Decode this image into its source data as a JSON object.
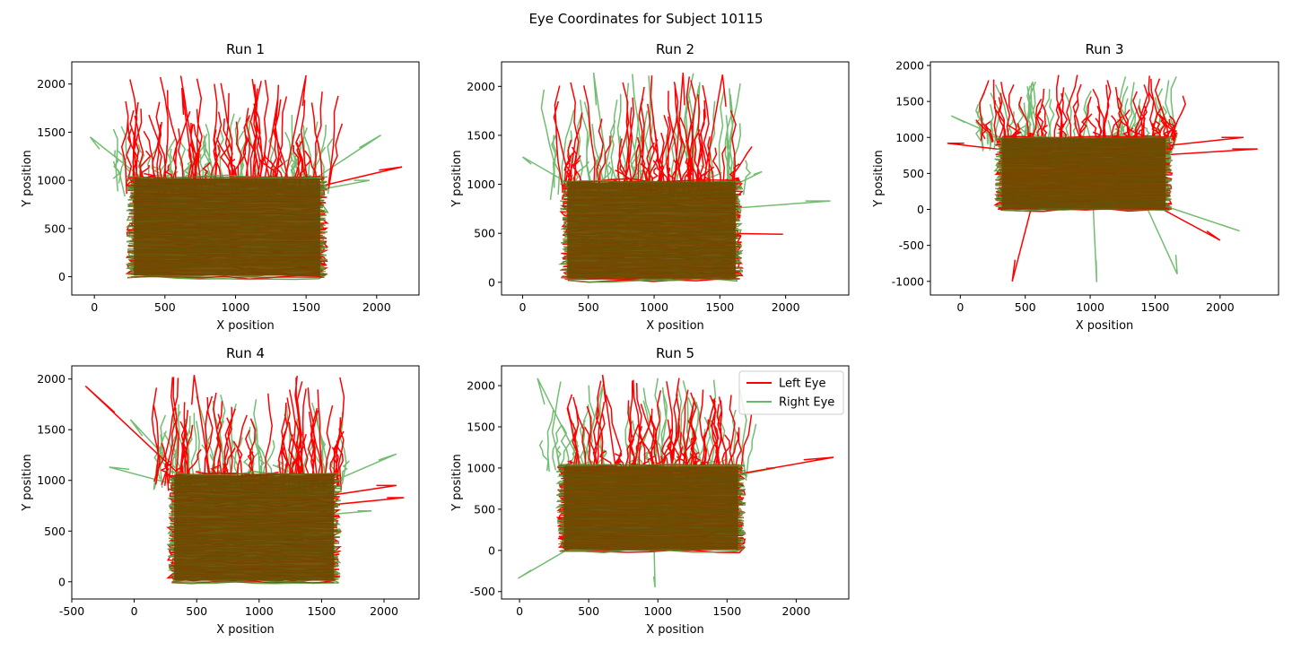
{
  "figure": {
    "title": "Eye Coordinates for Subject 10115"
  },
  "legend": {
    "entries": [
      {
        "name": "Left Eye",
        "color": "#ff0000"
      },
      {
        "name": "Right Eye",
        "color": "#6ab96a"
      }
    ]
  },
  "chart_data": [
    {
      "type": "line",
      "title": "Run 1",
      "xlabel": "X position",
      "ylabel": "Y position",
      "xlim": [
        -160,
        2300
      ],
      "ylim": [
        -190,
        2230
      ],
      "xticks": [
        0,
        500,
        1000,
        1500,
        2000
      ],
      "yticks": [
        0,
        500,
        1000,
        1500,
        2000
      ],
      "grid": false,
      "scan_region": {
        "x": [
          260,
          1620
        ],
        "y": [
          0,
          1030
        ]
      },
      "series": [
        {
          "name": "Left Eye",
          "color": "#ff0000",
          "excursions_y_max": 2090,
          "excursions_x_range": [
            200,
            2200
          ],
          "stray_points": [
            [
              1500,
              2090
            ],
            [
              2180,
              1140
            ],
            [
              1300,
              1850
            ],
            [
              620,
              1960
            ]
          ]
        },
        {
          "name": "Right Eye",
          "color": "#6ab96a",
          "excursions_y_max": 1700,
          "excursions_x_range": [
            -30,
            2100
          ],
          "stray_points": [
            [
              -30,
              1450
            ],
            [
              2030,
              1470
            ],
            [
              1950,
              1000
            ]
          ]
        }
      ]
    },
    {
      "type": "line",
      "title": "Run 2",
      "xlabel": "X position",
      "ylabel": "Y position",
      "xlim": [
        -160,
        2480
      ],
      "ylim": [
        -130,
        2250
      ],
      "xticks": [
        0,
        500,
        1000,
        1500,
        2000
      ],
      "yticks": [
        0,
        500,
        1000,
        1500,
        2000
      ],
      "grid": false,
      "scan_region": {
        "x": [
          320,
          1640
        ],
        "y": [
          30,
          1030
        ]
      },
      "series": [
        {
          "name": "Left Eye",
          "color": "#ff0000",
          "excursions_y_max": 2130,
          "excursions_x_range": [
            250,
            1980
          ],
          "stray_points": [
            [
              1980,
              490
            ],
            [
              1220,
              2140
            ],
            [
              1520,
              2120
            ]
          ]
        },
        {
          "name": "Right Eye",
          "color": "#6ab96a",
          "excursions_y_max": 2140,
          "excursions_x_range": [
            0,
            2340
          ],
          "stray_points": [
            [
              0,
              1280
            ],
            [
              2340,
              830
            ],
            [
              1820,
              1130
            ],
            [
              540,
              2140
            ]
          ]
        }
      ]
    },
    {
      "type": "line",
      "title": "Run 3",
      "xlabel": "X position",
      "ylabel": "Y position",
      "xlim": [
        -230,
        2450
      ],
      "ylim": [
        -1190,
        2050
      ],
      "xticks": [
        0,
        500,
        1000,
        1500,
        2000
      ],
      "yticks": [
        -1000,
        -500,
        0,
        500,
        1000,
        1500,
        2000
      ],
      "grid": false,
      "scan_region": {
        "x": [
          300,
          1600
        ],
        "y": [
          0,
          1000
        ]
      },
      "series": [
        {
          "name": "Left Eye",
          "color": "#ff0000",
          "excursions_y_max": 1870,
          "excursions_x_range": [
            -100,
            2290
          ],
          "stray_points": [
            [
              2290,
              840
            ],
            [
              2000,
              -430
            ],
            [
              2180,
              1000
            ],
            [
              -100,
              920
            ],
            [
              400,
              -1000
            ]
          ]
        },
        {
          "name": "Right Eye",
          "color": "#6ab96a",
          "excursions_y_max": 1850,
          "excursions_x_range": [
            -70,
            2150
          ],
          "stray_points": [
            [
              2150,
              -300
            ],
            [
              1670,
              -900
            ],
            [
              -70,
              1300
            ],
            [
              1050,
              -1010
            ]
          ]
        }
      ]
    },
    {
      "type": "line",
      "title": "Run 4",
      "xlabel": "X position",
      "ylabel": "Y position",
      "xlim": [
        -500,
        2280
      ],
      "ylim": [
        -170,
        2130
      ],
      "xticks": [
        -500,
        0,
        500,
        1000,
        1500,
        2000
      ],
      "yticks": [
        0,
        500,
        1000,
        1500,
        2000
      ],
      "grid": false,
      "scan_region": {
        "x": [
          300,
          1620
        ],
        "y": [
          0,
          1060
        ]
      },
      "series": [
        {
          "name": "Left Eye",
          "color": "#ff0000",
          "excursions_y_max": 2040,
          "excursions_x_range": [
            -390,
            2160
          ],
          "stray_points": [
            [
              -390,
              1930
            ],
            [
              2160,
              830
            ],
            [
              2100,
              950
            ],
            [
              480,
              2040
            ]
          ]
        },
        {
          "name": "Right Eye",
          "color": "#6ab96a",
          "excursions_y_max": 1900,
          "excursions_x_range": [
            -200,
            2100
          ],
          "stray_points": [
            [
              -200,
              1130
            ],
            [
              2100,
              1260
            ],
            [
              -30,
              1600
            ],
            [
              1900,
              700
            ]
          ]
        }
      ]
    },
    {
      "type": "line",
      "title": "Run 5",
      "xlabel": "X position",
      "ylabel": "Y position",
      "xlim": [
        -130,
        2380
      ],
      "ylim": [
        -590,
        2240
      ],
      "xticks": [
        0,
        500,
        1000,
        1500,
        2000
      ],
      "yticks": [
        -500,
        0,
        500,
        1000,
        1500,
        2000
      ],
      "grid": false,
      "legend_position": "top-right",
      "scan_region": {
        "x": [
          300,
          1600
        ],
        "y": [
          0,
          1030
        ]
      },
      "series": [
        {
          "name": "Left Eye",
          "color": "#ff0000",
          "excursions_y_max": 2130,
          "excursions_x_range": [
            300,
            2270
          ],
          "stray_points": [
            [
              2270,
              1130
            ],
            [
              1260,
              1800
            ],
            [
              600,
              2130
            ]
          ]
        },
        {
          "name": "Right Eye",
          "color": "#6ab96a",
          "excursions_y_max": 2090,
          "excursions_x_range": [
            -10,
            2000
          ],
          "stray_points": [
            [
              -10,
              -340
            ],
            [
              980,
              -450
            ],
            [
              130,
              2090
            ],
            [
              1850,
              1000
            ]
          ]
        }
      ]
    }
  ]
}
